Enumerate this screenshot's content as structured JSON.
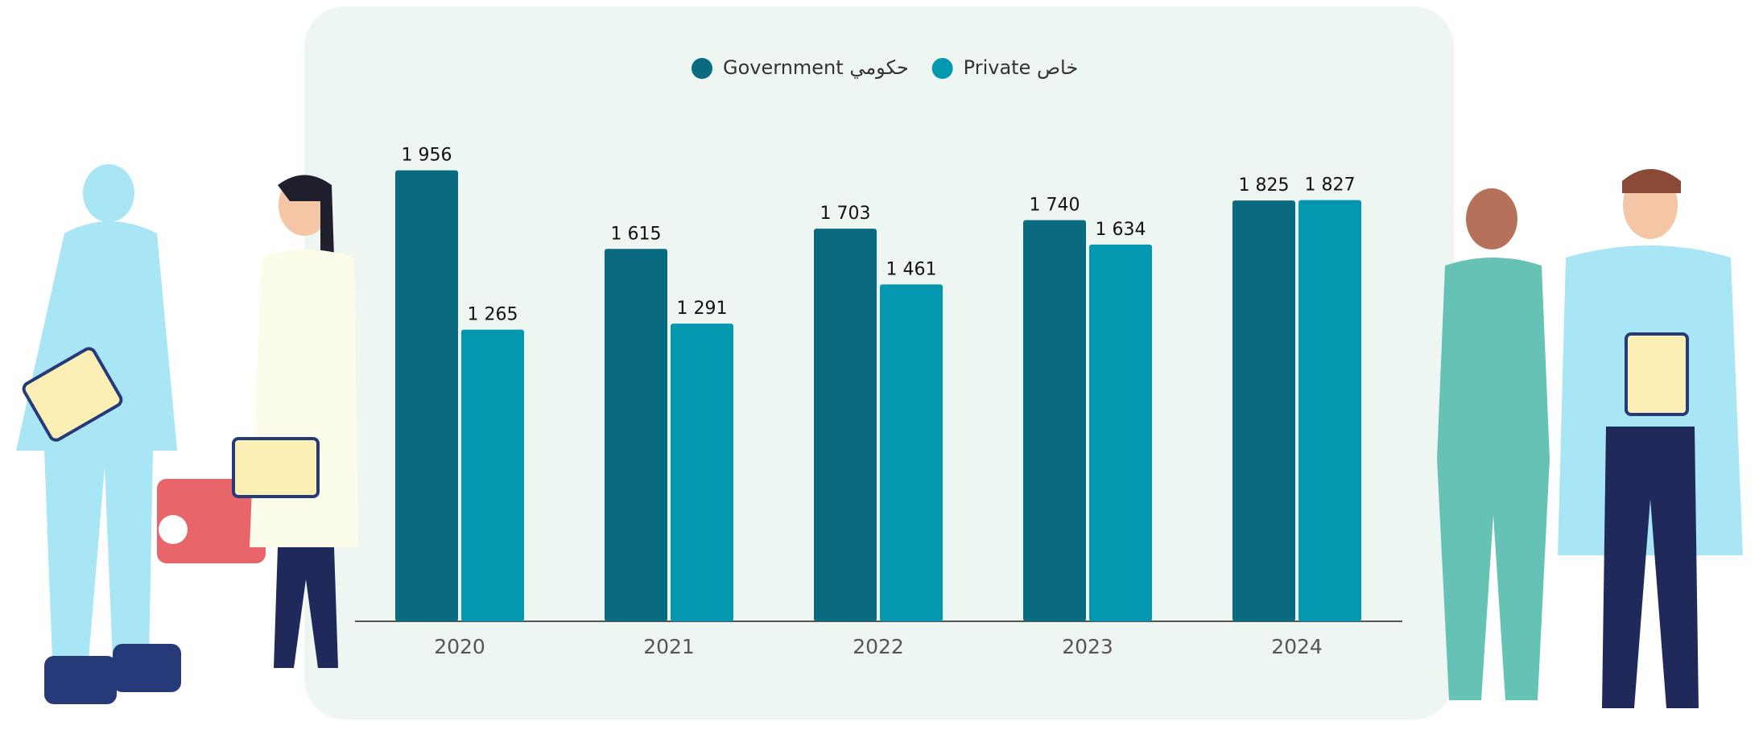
{
  "chart_data": {
    "type": "bar",
    "categories": [
      "2020",
      "2021",
      "2022",
      "2023",
      "2024"
    ],
    "series": [
      {
        "name": "Government حكومي",
        "color": "#0a6b80",
        "values": [
          1956,
          1615,
          1703,
          1740,
          1825
        ],
        "value_labels": [
          "1 956",
          "1 615",
          "1 703",
          "1 740",
          "1 825"
        ]
      },
      {
        "name": "Private خاص",
        "color": "#0397b0",
        "values": [
          1265,
          1291,
          1461,
          1634,
          1827
        ],
        "value_labels": [
          "1 265",
          "1 291",
          "1 461",
          "1 634",
          "1 827"
        ]
      }
    ],
    "ylim": [
      0,
      2000
    ]
  }
}
